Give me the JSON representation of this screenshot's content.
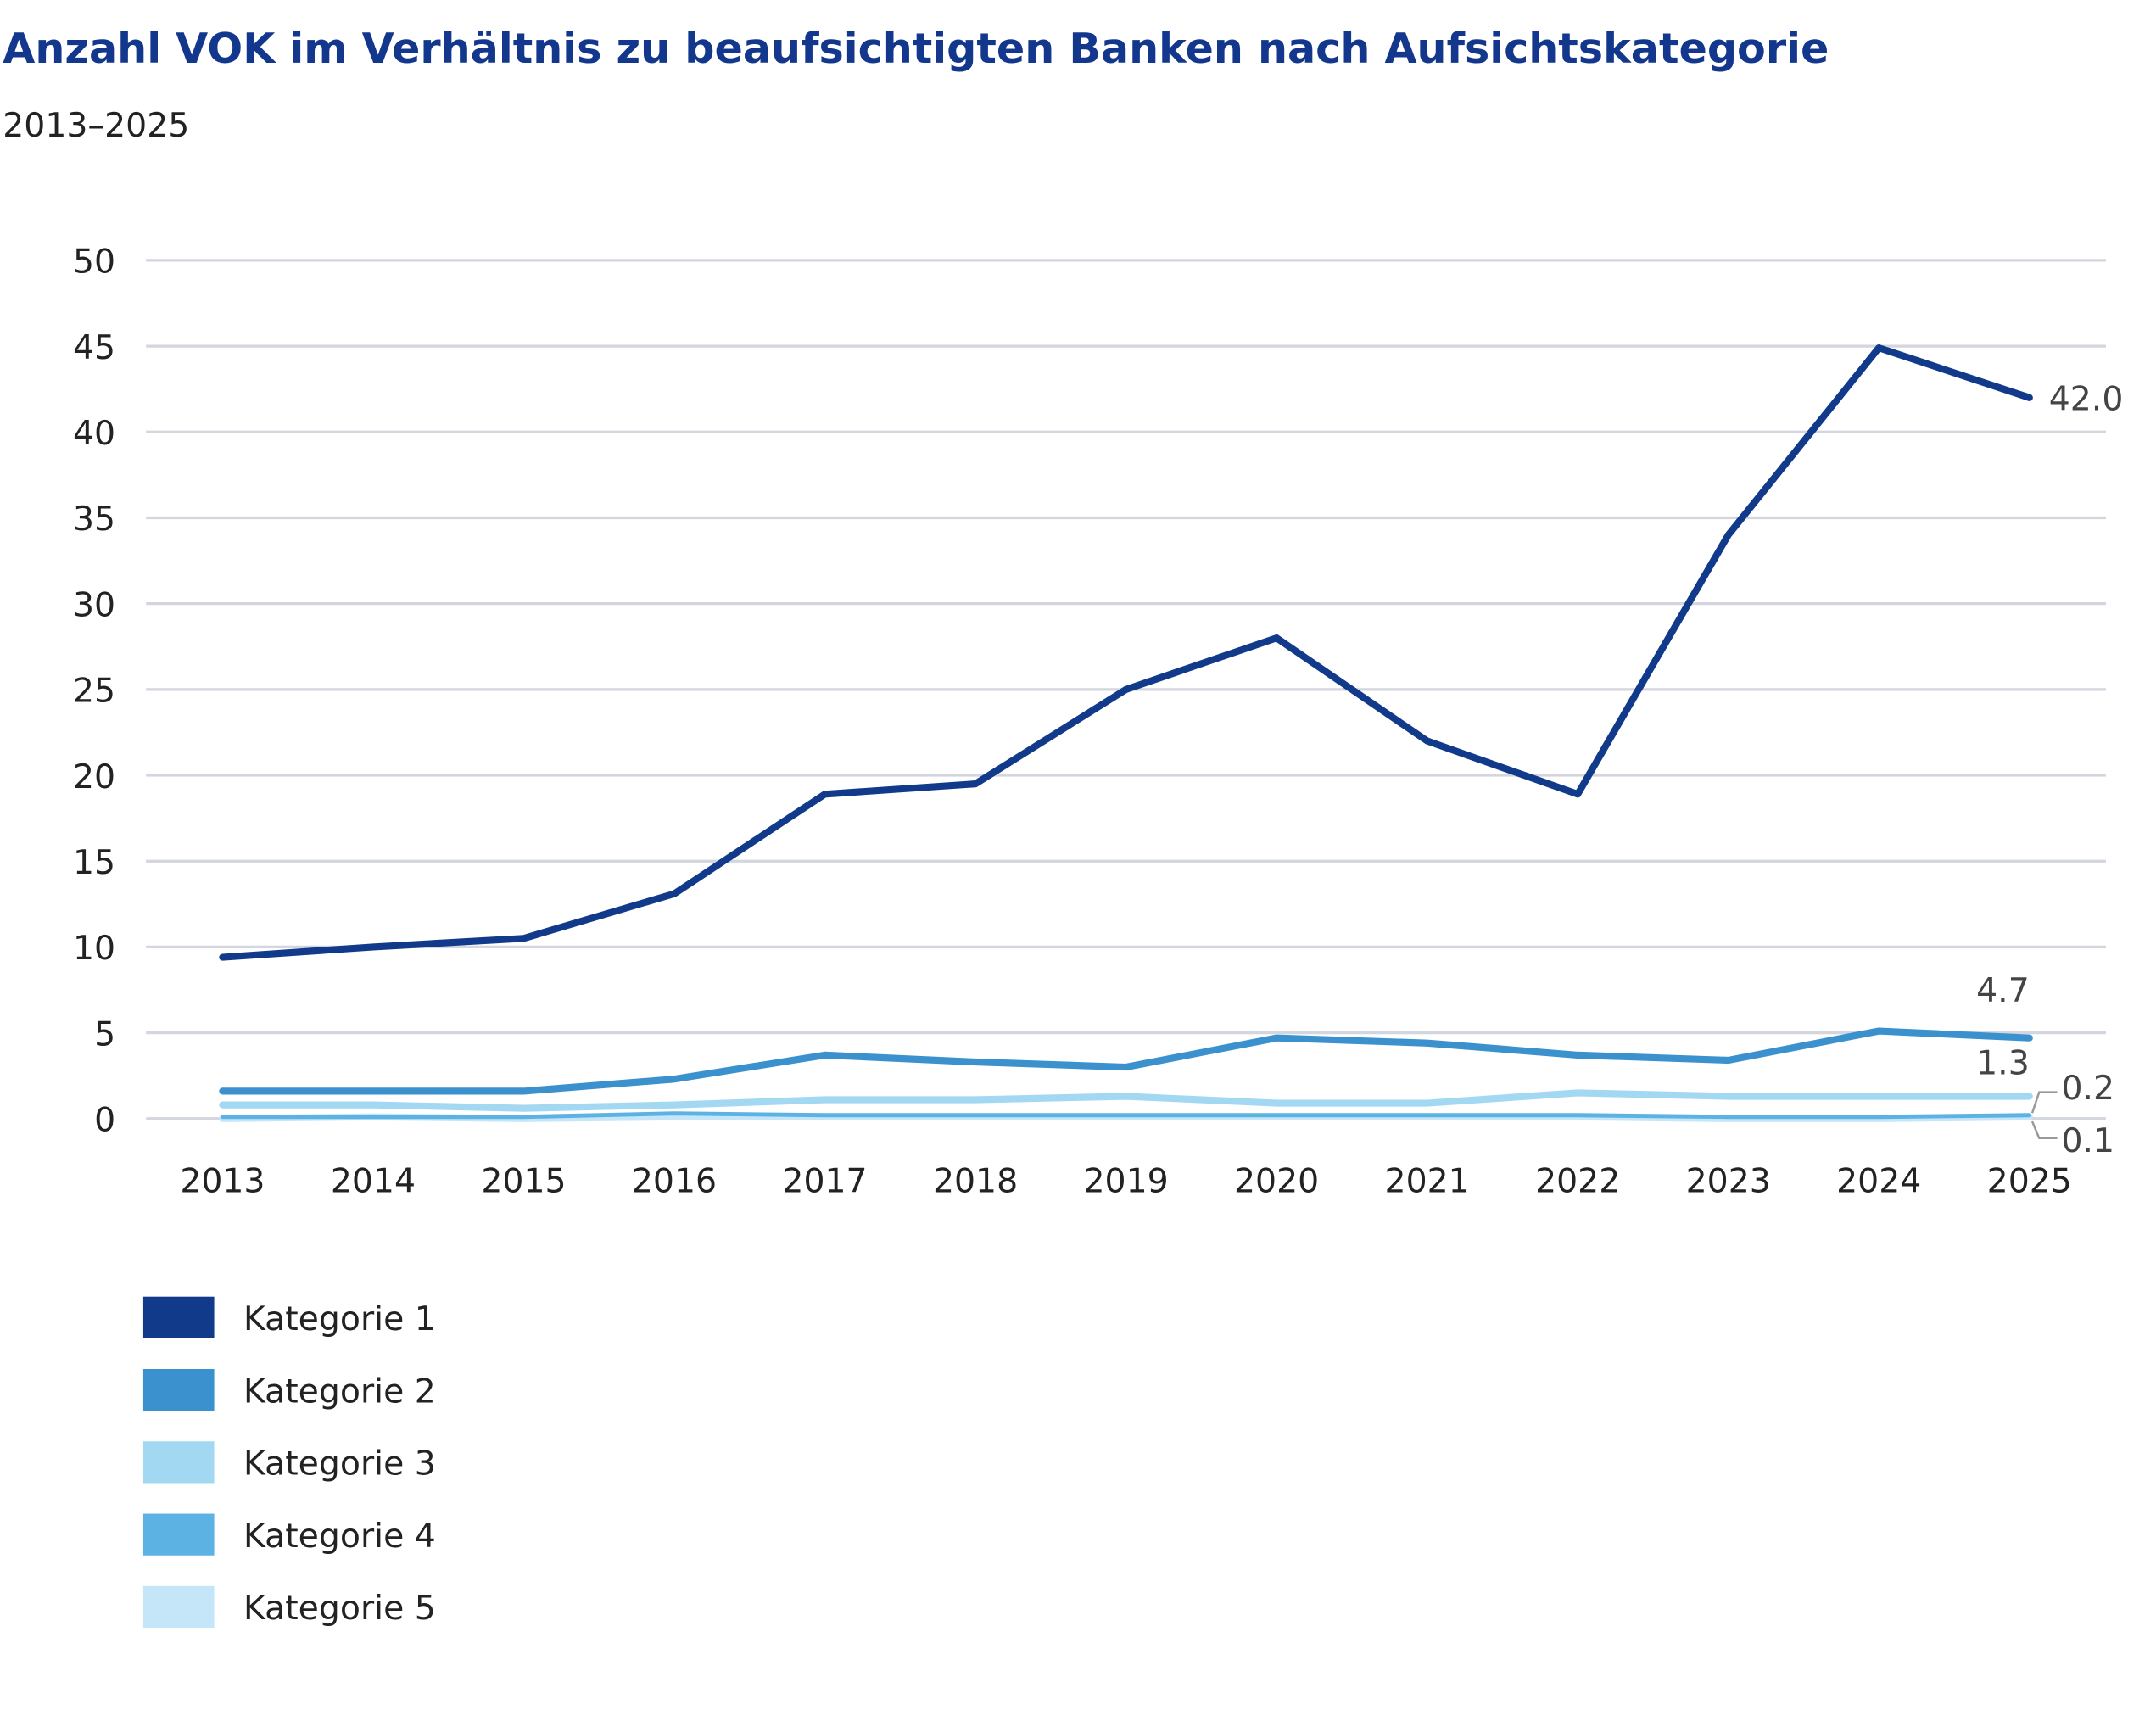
{
  "chart_data": {
    "type": "line",
    "title": "Anzahl VOK im Verhältnis zu beaufsichtigten Banken nach Aufsichtskategorie",
    "subtitle": "2013–2025",
    "xlabel": "",
    "ylabel": "",
    "ylim": [
      0,
      50
    ],
    "yticks": [
      "0",
      "5",
      "10",
      "15",
      "20",
      "25",
      "30",
      "35",
      "40",
      "45",
      "50"
    ],
    "grid": true,
    "legend_position": "bottom-left",
    "categories": [
      "2013",
      "2014",
      "2015",
      "2016",
      "2017",
      "2018",
      "2019",
      "2020",
      "2021",
      "2022",
      "2023",
      "2024",
      "2025"
    ],
    "series": [
      {
        "name": "Kategorie 1",
        "color": "#123a8b",
        "values": [
          9.4,
          10.0,
          10.5,
          13.1,
          18.9,
          19.5,
          25.0,
          28.0,
          22.0,
          18.9,
          34.0,
          44.9,
          42.0
        ],
        "end_label": "42.0"
      },
      {
        "name": "Kategorie 2",
        "color": "#3a91cd",
        "values": [
          1.6,
          1.6,
          1.6,
          2.3,
          3.7,
          3.3,
          3.0,
          4.7,
          4.4,
          3.7,
          3.4,
          5.1,
          4.7
        ],
        "end_label": "4.7"
      },
      {
        "name": "Kategorie 3",
        "color": "#a3d8f3",
        "values": [
          0.8,
          0.8,
          0.6,
          0.8,
          1.1,
          1.1,
          1.3,
          0.9,
          0.9,
          1.5,
          1.3,
          1.3,
          1.3
        ],
        "end_label": "1.3"
      },
      {
        "name": "Kategorie 4",
        "color": "#5cb2e2",
        "values": [
          0.1,
          0.1,
          0.1,
          0.3,
          0.2,
          0.2,
          0.2,
          0.2,
          0.2,
          0.2,
          0.1,
          0.1,
          0.2
        ],
        "end_label": "0.2"
      },
      {
        "name": "Kategorie 5",
        "color": "#c5e6f8",
        "values": [
          0.0,
          0.1,
          0.0,
          0.1,
          0.1,
          0.1,
          0.1,
          0.1,
          0.1,
          0.1,
          0.0,
          0.0,
          0.1
        ],
        "end_label": "0.1"
      }
    ]
  }
}
